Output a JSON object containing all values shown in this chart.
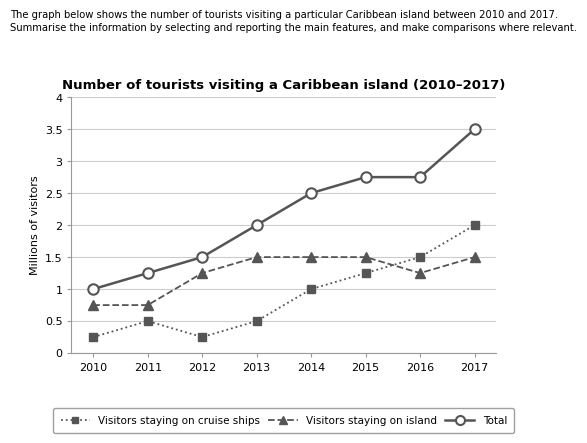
{
  "title": "Number of tourists visiting a Caribbean island (2010–2017)",
  "header_line1": "The graph below shows the number of tourists visiting a particular Caribbean island between 2010 and 2017.",
  "header_line2": "Summarise the information by selecting and reporting the main features, and make comparisons where relevant.",
  "ylabel": "Millions of visitors",
  "years": [
    2010,
    2011,
    2012,
    2013,
    2014,
    2015,
    2016,
    2017
  ],
  "cruise_ships": [
    0.25,
    0.5,
    0.25,
    0.5,
    1.0,
    1.25,
    1.5,
    2.0
  ],
  "island": [
    0.75,
    0.75,
    1.25,
    1.5,
    1.5,
    1.5,
    1.25,
    1.5
  ],
  "total": [
    1.0,
    1.25,
    1.5,
    2.0,
    2.5,
    2.75,
    2.75,
    3.5
  ],
  "ylim": [
    0,
    4
  ],
  "yticks": [
    0,
    0.5,
    1.0,
    1.5,
    2.0,
    2.5,
    3.0,
    3.5,
    4.0
  ],
  "legend_labels": [
    "Visitors staying on cruise ships",
    "Visitors staying on island",
    "Total"
  ],
  "line_color": "#555555",
  "grid_color": "#cccccc"
}
